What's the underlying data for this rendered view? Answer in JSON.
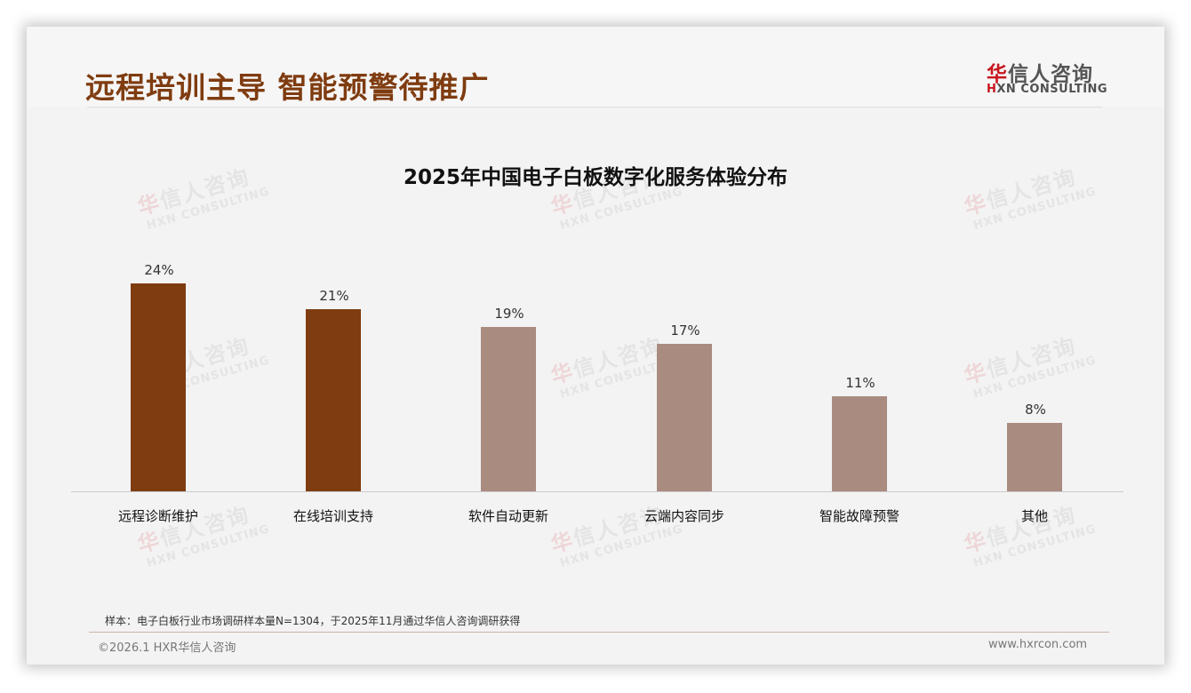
{
  "header": {
    "title": "远程培训主导 智能预警待推广",
    "logo": {
      "cn_first": "华",
      "cn_rest": "信人咨询",
      "en_first": "H",
      "en_rest": "XN CONSULTING"
    }
  },
  "colors": {
    "title": "#7f3c10",
    "bar_primary": "#7f3c10",
    "bar_secondary": "#a98b80",
    "logo_red": "#c8161d",
    "footer_rule": "#c9b2a6"
  },
  "watermark": {
    "cn_first": "华",
    "cn_rest": "信人咨询",
    "en": "HXN CONSULTING"
  },
  "chart_data": {
    "type": "bar",
    "title": "2025年中国电子白板数字化服务体验分布",
    "xlabel": "",
    "ylabel": "",
    "ylim": [
      0,
      30
    ],
    "grid": false,
    "legend": null,
    "categories": [
      "远程诊断维护",
      "在线培训支持",
      "软件自动更新",
      "云端内容同步",
      "智能故障预警",
      "其他"
    ],
    "values": [
      24,
      21,
      19,
      17,
      11,
      8
    ],
    "value_labels": [
      "24%",
      "21%",
      "19%",
      "17%",
      "11%",
      "8%"
    ],
    "highlighted": [
      true,
      true,
      false,
      false,
      false,
      false
    ],
    "unit": "%"
  },
  "footer": {
    "note": "样本：电子白板行业市场调研样本量N=1304，于2025年11月通过华信人咨询调研获得",
    "copyright": "©2026.1 HXR华信人咨询",
    "website": "www.hxrcon.com"
  }
}
